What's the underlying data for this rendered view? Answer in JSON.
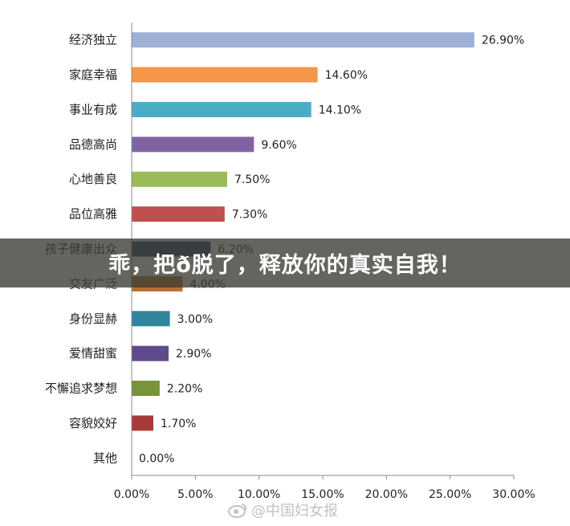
{
  "chart_data": {
    "type": "bar",
    "orientation": "horizontal",
    "categories": [
      "经济独立",
      "家庭幸福",
      "事业有成",
      "品德高尚",
      "心地善良",
      "品位高雅",
      "孩子健康出众",
      "交友广泛",
      "身份显赫",
      "爱情甜蜜",
      "不懈追求梦想",
      "容貌姣好",
      "其他"
    ],
    "values": [
      26.9,
      14.6,
      14.1,
      9.6,
      7.5,
      7.3,
      6.2,
      4.0,
      3.0,
      2.9,
      2.2,
      1.7,
      0.0
    ],
    "value_labels": [
      "26.90%",
      "14.60%",
      "14.10%",
      "9.60%",
      "7.50%",
      "7.30%",
      "6.20%",
      "4.00%",
      "3.00%",
      "2.90%",
      "2.20%",
      "1.70%",
      "0.00%"
    ],
    "colors": [
      "#9eb0d6",
      "#f79646",
      "#4bacc6",
      "#8064a2",
      "#9bbb59",
      "#c0504d",
      "#1f3d5c",
      "#b86e2e",
      "#31869b",
      "#5f4b8b",
      "#77933c",
      "#a83a38",
      "#8aa2cf"
    ],
    "xlim": [
      0,
      30
    ],
    "x_ticks": [
      "0.00%",
      "5.00%",
      "10.00%",
      "15.00%",
      "20.00%",
      "25.00%",
      "30.00%"
    ],
    "title": "",
    "xlabel": "",
    "ylabel": "",
    "grid": false,
    "legend": "none"
  },
  "banner": {
    "text": "乖，把ð脱了，释放你的真实自我！"
  },
  "watermark": {
    "icon": "weibo-icon",
    "text": "@中国妇女报"
  }
}
